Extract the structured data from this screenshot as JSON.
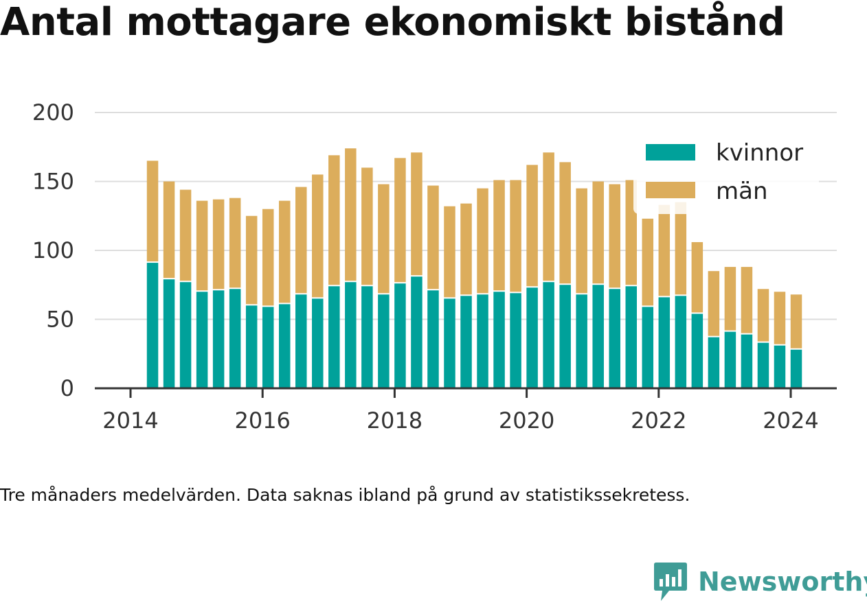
{
  "title": "Antal mottagare ekonomiskt bistånd",
  "caption": "Tre månaders medelvärden. Data saknas ibland på grund av statistikssekretess.",
  "brand": {
    "name": "Newsworthy",
    "icon": "newsworthy-logo-icon",
    "color": "#3f9c96"
  },
  "chart_data": {
    "type": "bar",
    "stacked": true,
    "x_axis": {
      "kind": "time",
      "ticks": [
        "2014",
        "2016",
        "2018",
        "2020",
        "2022",
        "2024"
      ]
    },
    "y_axis": {
      "ticks": [
        "0",
        "50",
        "100",
        "150",
        "200"
      ],
      "ylim": [
        0,
        200
      ]
    },
    "grid": "horizontal",
    "legend": {
      "placement": "top-right"
    },
    "categories": [
      "2014-05",
      "2014-08",
      "2014-11",
      "2015-02",
      "2015-05",
      "2015-08",
      "2015-11",
      "2016-02",
      "2016-05",
      "2016-08",
      "2016-11",
      "2017-02",
      "2017-05",
      "2017-08",
      "2017-11",
      "2018-02",
      "2018-05",
      "2018-08",
      "2018-11",
      "2019-02",
      "2019-05",
      "2019-08",
      "2019-11",
      "2020-02",
      "2020-05",
      "2020-08",
      "2020-11",
      "2021-02",
      "2021-05",
      "2021-08",
      "2021-11",
      "2022-02",
      "2022-05",
      "2022-08",
      "2022-11",
      "2023-02",
      "2023-05",
      "2023-08",
      "2023-11",
      "2024-02"
    ],
    "series": [
      {
        "name": "kvinnor",
        "color": "#00a19a",
        "values": [
          91,
          79,
          77,
          70,
          71,
          72,
          60,
          59,
          61,
          68,
          65,
          74,
          77,
          74,
          68,
          76,
          81,
          71,
          65,
          67,
          68,
          70,
          69,
          73,
          77,
          75,
          68,
          75,
          72,
          74,
          59,
          66,
          67,
          54,
          37,
          41,
          39,
          33,
          31,
          28
        ]
      },
      {
        "name": "män",
        "color": "#dcad5c",
        "values": [
          74,
          71,
          67,
          66,
          66,
          66,
          65,
          71,
          75,
          78,
          90,
          95,
          97,
          86,
          80,
          91,
          90,
          76,
          67,
          67,
          77,
          81,
          82,
          89,
          94,
          89,
          77,
          75,
          76,
          77,
          64,
          67,
          68,
          52,
          48,
          47,
          49,
          39,
          39,
          40
        ]
      }
    ]
  }
}
